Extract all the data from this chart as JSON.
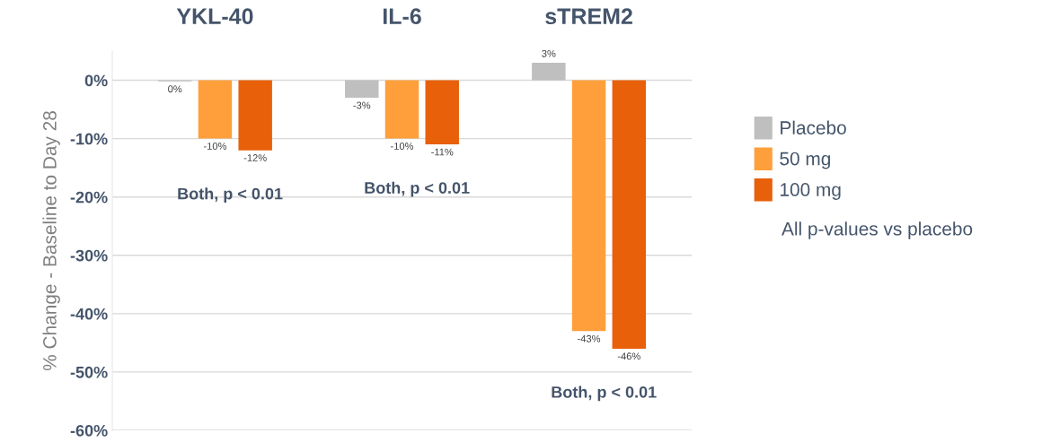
{
  "chart_data": {
    "type": "bar",
    "ylabel": "% Change - Baseline to Day 28",
    "categories": [
      "YKL-40",
      "IL-6",
      "sTREM2"
    ],
    "series": [
      {
        "name": "Placebo",
        "color": "#bfbfbf",
        "values": [
          -0.2,
          -3,
          3
        ],
        "value_labels": [
          "0%",
          "-3%",
          "3%"
        ]
      },
      {
        "name": "50 mg",
        "color": "#ff9f3b",
        "values": [
          -10,
          -10,
          -43
        ],
        "value_labels": [
          "-10%",
          "-10%",
          "-43%"
        ]
      },
      {
        "name": "100 mg",
        "color": "#e8600a",
        "values": [
          -12,
          -11,
          -46
        ],
        "value_labels": [
          "-12%",
          "-11%",
          "-46%"
        ]
      }
    ],
    "ylim": [
      -60,
      5
    ],
    "yticks": [
      {
        "value": 0,
        "label": "0%"
      },
      {
        "value": -10,
        "label": "-10%"
      },
      {
        "value": -20,
        "label": "-20%"
      },
      {
        "value": -30,
        "label": "-30%"
      },
      {
        "value": -40,
        "label": "-40%"
      },
      {
        "value": -50,
        "label": "-50%"
      },
      {
        "value": -60,
        "label": "-60%"
      }
    ],
    "grid": "y",
    "legend": "right",
    "annotations": [
      "Both, p < 0.01",
      "Both, p < 0.01",
      "Both, p < 0.01",
      "All p-values vs placebo"
    ]
  }
}
